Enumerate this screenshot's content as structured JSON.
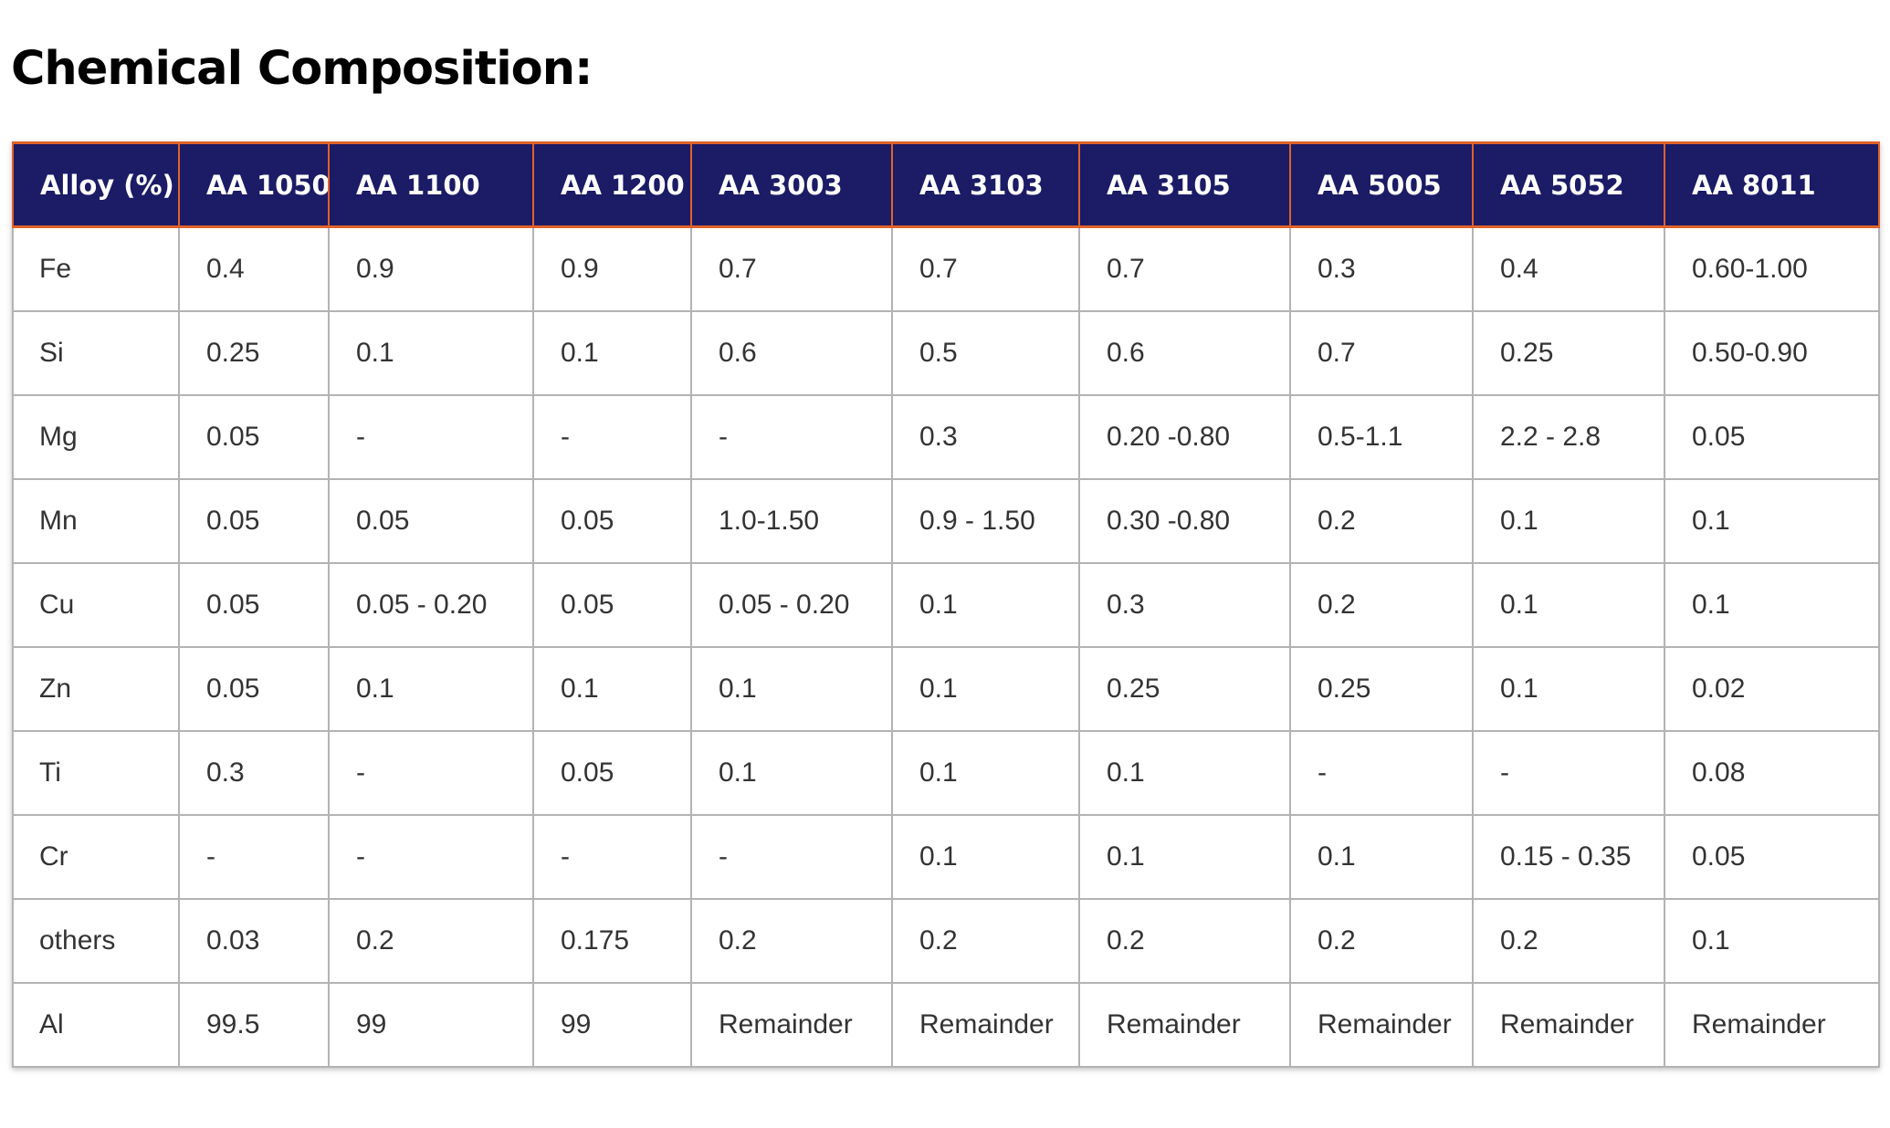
{
  "title": "Chemical Composition:",
  "colors": {
    "header_background": "#1b1b66",
    "header_border": "#e0622a",
    "header_text": "#ffffff",
    "cell_border": "#b3b3b3"
  },
  "table": {
    "columns": [
      "Alloy (%)",
      "AA 1050",
      "AA 1100",
      "AA 1200",
      "AA 3003",
      "AA 3103",
      "AA 3105",
      "AA 5005",
      "AA 5052",
      "AA 8011"
    ],
    "rows": [
      [
        "Fe",
        "0.4",
        "0.9",
        "0.9",
        "0.7",
        "0.7",
        "0.7",
        "0.3",
        "0.4",
        "0.60-1.00"
      ],
      [
        "Si",
        "0.25",
        "0.1",
        "0.1",
        "0.6",
        "0.5",
        "0.6",
        "0.7",
        "0.25",
        "0.50-0.90"
      ],
      [
        "Mg",
        "0.05",
        "-",
        "-",
        "-",
        "0.3",
        "0.20 -0.80",
        "0.5-1.1",
        "2.2 - 2.8",
        "0.05"
      ],
      [
        "Mn",
        "0.05",
        "0.05",
        "0.05",
        "1.0-1.50",
        "0.9 - 1.50",
        "0.30 -0.80",
        "0.2",
        "0.1",
        "0.1"
      ],
      [
        "Cu",
        "0.05",
        "0.05 - 0.20",
        "0.05",
        "0.05 - 0.20",
        "0.1",
        "0.3",
        "0.2",
        "0.1",
        "0.1"
      ],
      [
        "Zn",
        "0.05",
        "0.1",
        "0.1",
        "0.1",
        "0.1",
        "0.25",
        "0.25",
        "0.1",
        "0.02"
      ],
      [
        "Ti",
        "0.3",
        "-",
        "0.05",
        "0.1",
        "0.1",
        "0.1",
        "-",
        "-",
        "0.08"
      ],
      [
        "Cr",
        "-",
        "-",
        "-",
        "-",
        "0.1",
        "0.1",
        "0.1",
        "0.15 - 0.35",
        "0.05"
      ],
      [
        "others",
        "0.03",
        "0.2",
        "0.175",
        "0.2",
        "0.2",
        "0.2",
        "0.2",
        "0.2",
        "0.1"
      ],
      [
        "Al",
        "99.5",
        "99",
        "99",
        "Remainder",
        "Remainder",
        "Remainder",
        "Remainder",
        "Remainder",
        "Remainder"
      ]
    ]
  }
}
